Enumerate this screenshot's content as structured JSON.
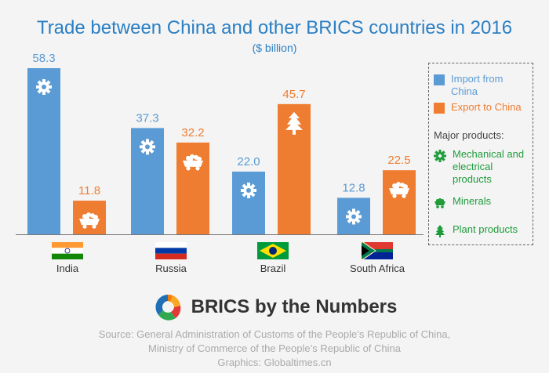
{
  "header": {
    "title": "Trade between China and other BRICS countries in 2016",
    "subtitle": "($ billion)"
  },
  "colors": {
    "import": "#5b9bd5",
    "export": "#ef7d31",
    "title": "#2b7fc4",
    "green": "#1e9c3a"
  },
  "chart_data": {
    "type": "bar",
    "title": "Trade between China and other BRICS countries in 2016",
    "subtitle": "($ billion)",
    "categories": [
      "India",
      "Russia",
      "Brazil",
      "South Africa"
    ],
    "series": [
      {
        "name": "Import from China",
        "values": [
          58.3,
          37.3,
          22.0,
          12.8
        ]
      },
      {
        "name": "Export to China",
        "values": [
          11.8,
          32.2,
          45.7,
          22.5
        ]
      }
    ],
    "value_labels": [
      [
        "58.3",
        "37.3",
        "22.0",
        "12.8"
      ],
      [
        "11.8",
        "32.2",
        "45.7",
        "22.5"
      ]
    ],
    "product_icons": [
      [
        "gear-icon",
        "gear-icon",
        "gear-icon",
        "gear-icon"
      ],
      [
        "minecart-icon",
        "minecart-icon",
        "tree-icon",
        "minecart-icon"
      ]
    ],
    "ylim": [
      0,
      58.3
    ],
    "grid": false,
    "legend_position": "right"
  },
  "legend": {
    "import_label": "Import from China",
    "export_label": "Export to China",
    "products_header": "Major products:",
    "products": [
      {
        "icon": "gear-icon",
        "label": "Mechanical and electrical products"
      },
      {
        "icon": "minecart-icon",
        "label": "Minerals"
      },
      {
        "icon": "tree-icon",
        "label": "Plant products"
      }
    ]
  },
  "countries": [
    {
      "name": "India",
      "flag": "india-flag"
    },
    {
      "name": "Russia",
      "flag": "russia-flag"
    },
    {
      "name": "Brazil",
      "flag": "brazil-flag"
    },
    {
      "name": "South Africa",
      "flag": "south-africa-flag"
    }
  ],
  "brand": {
    "text": "BRICS by the Numbers"
  },
  "source": {
    "line1": "Source: General Administration of Customs of the People’s Republic of China,",
    "line2": "Ministry of Commerce of the People’s Republic of China",
    "line3": "Graphics: Globaltimes.cn"
  }
}
